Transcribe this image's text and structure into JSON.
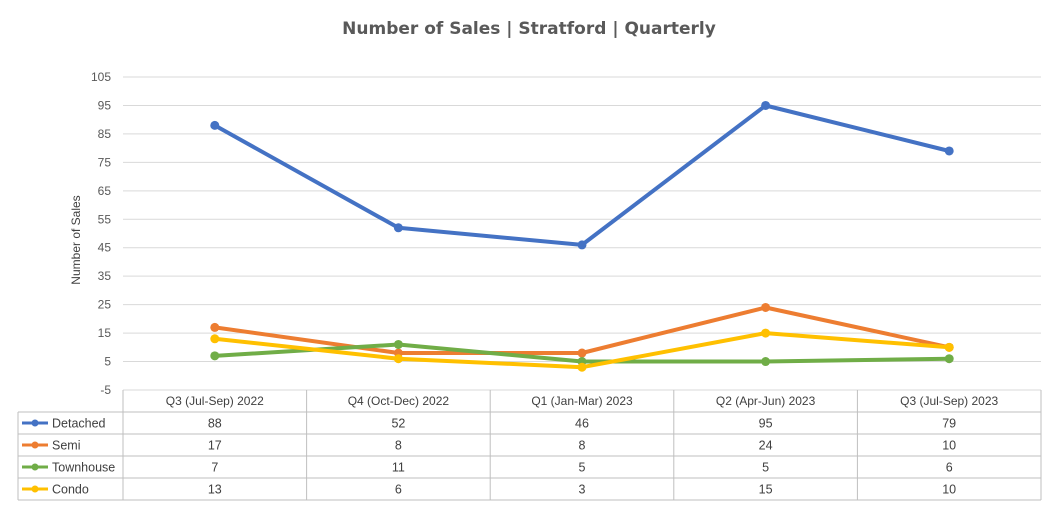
{
  "chart_data": {
    "type": "line",
    "title": "Number of Sales | Stratford | Quarterly",
    "xlabel": "",
    "ylabel": "Number of Sales",
    "ylim": [
      -5,
      105
    ],
    "yticks": [
      105,
      95,
      85,
      75,
      65,
      55,
      45,
      35,
      25,
      15,
      5,
      -5
    ],
    "grid": true,
    "legend": "data-table-left",
    "categories": [
      "Q3 (Jul-Sep) 2022",
      "Q4 (Oct-Dec) 2022",
      "Q1 (Jan-Mar) 2023",
      "Q2 (Apr-Jun) 2023",
      "Q3 (Jul-Sep) 2023"
    ],
    "series": [
      {
        "name": "Detached",
        "color": "#4472c4",
        "values": [
          88,
          52,
          46,
          95,
          79
        ]
      },
      {
        "name": "Semi",
        "color": "#ed7d31",
        "values": [
          17,
          8,
          8,
          24,
          10
        ]
      },
      {
        "name": "Townhouse",
        "color": "#70ad47",
        "values": [
          7,
          11,
          5,
          5,
          6
        ]
      },
      {
        "name": "Condo",
        "color": "#ffc000",
        "values": [
          13,
          6,
          3,
          15,
          10
        ]
      }
    ]
  }
}
